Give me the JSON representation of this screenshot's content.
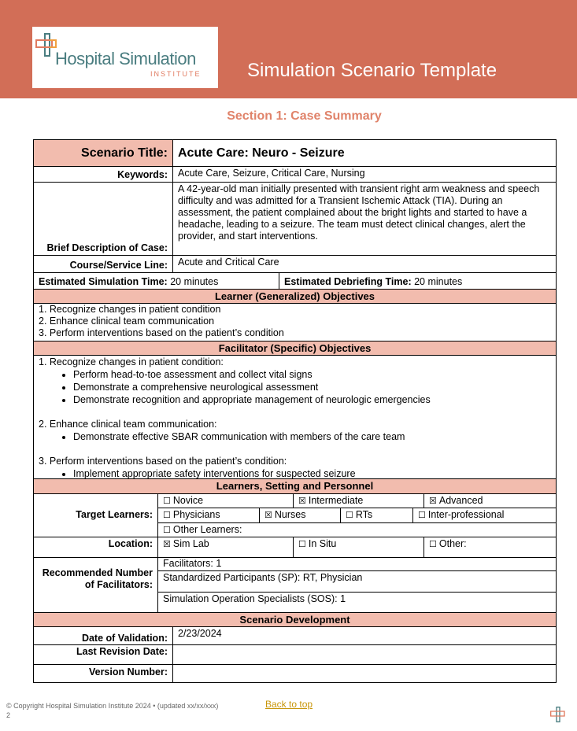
{
  "header": {
    "logo_name": "Hospital Simulation",
    "logo_sub": "INSTITUTE",
    "title": "Simulation Scenario Template"
  },
  "section_title": "Section 1: Case Summary",
  "case": {
    "title_label": "Scenario Title:",
    "title_value": "Acute Care: Neuro - Seizure",
    "keywords_label": "Keywords:",
    "keywords_value": "Acute Care, Seizure, Critical Care, Nursing",
    "description_label": "Brief Description of Case:",
    "description_value": "A 42-year-old man initially presented with transient right arm weakness and speech difficulty and was admitted for a Transient Ischemic Attack (TIA). During an assessment, the patient complained about the bright lights and started to have a headache, leading to a seizure. The team must detect clinical changes, alert the provider, and start interventions.",
    "course_label": "Course/Service Line:",
    "course_value": "Acute and Critical Care",
    "sim_time_label": "Estimated Simulation Time:",
    "sim_time_value": "20 minutes",
    "debrief_label": "Estimated Debriefing Time:",
    "debrief_value": "20 minutes"
  },
  "learner_objectives": {
    "heading": "Learner (Generalized) Objectives",
    "items": [
      "1. Recognize changes in patient condition",
      "2. Enhance clinical team communication",
      "3. Perform interventions based on the patient’s condition"
    ]
  },
  "facilitator_objectives": {
    "heading": "Facilitator (Specific) Objectives",
    "groups": [
      {
        "title": "1. Recognize changes in patient condition:",
        "bullets": [
          "Perform head-to-toe assessment and collect vital signs",
          "Demonstrate a comprehensive neurological assessment",
          "Demonstrate recognition and appropriate management of neurologic emergencies"
        ]
      },
      {
        "title": "2. Enhance clinical team communication:",
        "bullets": [
          "Demonstrate effective SBAR communication with members of the care team"
        ]
      },
      {
        "title": "3. Perform interventions based on the patient’s condition:",
        "bullets": [
          "Implement appropriate safety interventions for suspected seizure"
        ]
      }
    ]
  },
  "personnel": {
    "heading": "Learners, Setting and Personnel",
    "target_label": "Target Learners:",
    "levels": [
      {
        "label": "Novice",
        "checked": false
      },
      {
        "label": "Intermediate",
        "checked": true
      },
      {
        "label": "Advanced",
        "checked": true
      }
    ],
    "roles": [
      {
        "label": "Physicians",
        "checked": false
      },
      {
        "label": "Nurses",
        "checked": true
      },
      {
        "label": "RTs",
        "checked": false
      },
      {
        "label": "Inter-professional",
        "checked": false
      }
    ],
    "other": {
      "label": "Other Learners:",
      "checked": false
    },
    "location_label": "Location:",
    "locations": [
      {
        "label": "Sim Lab",
        "checked": true
      },
      {
        "label": "In Situ",
        "checked": false
      },
      {
        "label": "Other:",
        "checked": false
      }
    ],
    "facilitators_label": "Recommended Number of Facilitators:",
    "facilitators": [
      "Facilitators: 1",
      "Standardized Participants (SP): RT, Physician",
      "Simulation Operation Specialists (SOS): 1"
    ]
  },
  "development": {
    "heading": "Scenario Development",
    "validation_label": "Date of Validation:",
    "validation_value": "2/23/2024",
    "revision_label": "Last Revision Date:",
    "revision_value": "",
    "version_label": "Version Number:",
    "version_value": ""
  },
  "footer": {
    "copyright": "© Copyright Hospital Simulation Institute 2024 • (updated xx/xx/xxx)",
    "page": "2",
    "back_to_top": "Back to top"
  },
  "colors": {
    "banner": "#d26e57",
    "header_fill": "#f2bcae",
    "section_title": "#e0836a",
    "link": "#c8960a"
  }
}
